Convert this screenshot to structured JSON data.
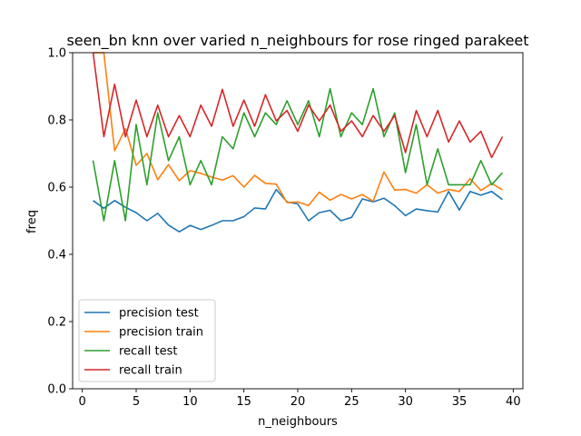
{
  "chart_data": {
    "type": "line",
    "title": "seen_bn knn over varied n_neighbours for rose ringed parakeet",
    "xlabel": "n_neighbours",
    "ylabel": "freq",
    "xlim": [
      -0.9,
      40.9
    ],
    "ylim": [
      0.0,
      1.0
    ],
    "xticks": [
      0,
      5,
      10,
      15,
      20,
      25,
      30,
      35,
      40
    ],
    "yticks": [
      0.0,
      0.2,
      0.4,
      0.6,
      0.8,
      1.0
    ],
    "xtick_labels": [
      "0",
      "5",
      "10",
      "15",
      "20",
      "25",
      "30",
      "35",
      "40"
    ],
    "ytick_labels": [
      "0.0",
      "0.2",
      "0.4",
      "0.6",
      "0.8",
      "1.0"
    ],
    "grid": false,
    "legend_position": "bottom-left",
    "x": [
      1,
      2,
      3,
      4,
      5,
      6,
      7,
      8,
      9,
      10,
      11,
      12,
      13,
      14,
      15,
      16,
      17,
      18,
      19,
      20,
      21,
      22,
      23,
      24,
      25,
      26,
      27,
      28,
      29,
      30,
      31,
      32,
      33,
      34,
      35,
      36,
      37,
      38,
      39
    ],
    "series": [
      {
        "name": "precision test",
        "color": "#1f77b4",
        "values": [
          0.56,
          0.537,
          0.56,
          0.54,
          0.524,
          0.5,
          0.522,
          0.487,
          0.467,
          0.486,
          0.474,
          0.486,
          0.5,
          0.5,
          0.512,
          0.538,
          0.535,
          0.593,
          0.556,
          0.55,
          0.5,
          0.524,
          0.531,
          0.5,
          0.51,
          0.565,
          0.556,
          0.567,
          0.545,
          0.515,
          0.535,
          0.53,
          0.526,
          0.587,
          0.532,
          0.587,
          0.576,
          0.587,
          0.563
        ]
      },
      {
        "name": "precision train",
        "color": "#ff7f0e",
        "values": [
          1.0,
          1.0,
          0.708,
          0.774,
          0.665,
          0.7,
          0.622,
          0.667,
          0.619,
          0.649,
          0.641,
          0.63,
          0.621,
          0.634,
          0.6,
          0.635,
          0.611,
          0.609,
          0.554,
          0.556,
          0.545,
          0.585,
          0.561,
          0.578,
          0.565,
          0.578,
          0.558,
          0.645,
          0.591,
          0.593,
          0.582,
          0.607,
          0.582,
          0.593,
          0.587,
          0.625,
          0.59,
          0.611,
          0.592
        ]
      },
      {
        "name": "recall test",
        "color": "#2ca02c",
        "values": [
          0.679,
          0.5,
          0.679,
          0.5,
          0.786,
          0.607,
          0.821,
          0.679,
          0.75,
          0.607,
          0.679,
          0.607,
          0.75,
          0.714,
          0.821,
          0.75,
          0.821,
          0.786,
          0.857,
          0.786,
          0.857,
          0.75,
          0.893,
          0.75,
          0.821,
          0.786,
          0.893,
          0.75,
          0.821,
          0.643,
          0.786,
          0.607,
          0.714,
          0.607,
          0.607,
          0.607,
          0.679,
          0.607,
          0.643
        ]
      },
      {
        "name": "recall train",
        "color": "#d62728",
        "values": [
          1.0,
          0.75,
          0.906,
          0.75,
          0.859,
          0.75,
          0.844,
          0.75,
          0.813,
          0.75,
          0.844,
          0.781,
          0.891,
          0.781,
          0.859,
          0.781,
          0.875,
          0.797,
          0.828,
          0.766,
          0.844,
          0.797,
          0.844,
          0.766,
          0.797,
          0.75,
          0.813,
          0.766,
          0.813,
          0.703,
          0.828,
          0.75,
          0.828,
          0.734,
          0.797,
          0.734,
          0.766,
          0.688,
          0.75
        ]
      }
    ]
  }
}
